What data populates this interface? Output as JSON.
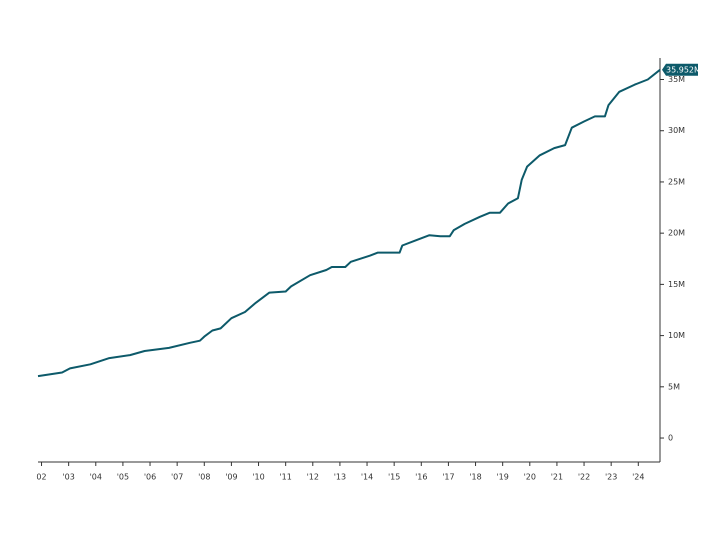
{
  "chart_data": {
    "type": "line",
    "x": [
      2002.37,
      2003.26,
      2003.55,
      2004.3,
      2005.0,
      2005.76,
      2006.3,
      2007.2,
      2007.97,
      2008.34,
      2008.5,
      2008.8,
      2009.1,
      2009.5,
      2010.0,
      2010.4,
      2010.9,
      2011.5,
      2011.7,
      2012.4,
      2013.0,
      2013.2,
      2013.7,
      2013.9,
      2014.6,
      2014.9,
      2015.7,
      2015.8,
      2016.3,
      2016.8,
      2017.2,
      2017.55,
      2017.7,
      2018.1,
      2018.66,
      2019.03,
      2019.4,
      2019.7,
      2020.06,
      2020.2,
      2020.4,
      2020.87,
      2021.4,
      2021.8,
      2022.05,
      2022.5,
      2022.9,
      2023.27,
      2023.4,
      2023.8,
      2024.37,
      2024.85,
      2025.3
    ],
    "series": [
      {
        "color": "#0d5a6a",
        "values": [
          6.05,
          6.4,
          6.8,
          7.2,
          7.8,
          8.1,
          8.5,
          8.8,
          9.3,
          9.5,
          9.9,
          10.5,
          10.7,
          11.7,
          12.3,
          13.2,
          14.2,
          14.3,
          14.8,
          15.9,
          16.4,
          16.7,
          16.7,
          17.2,
          17.8,
          18.1,
          18.1,
          18.8,
          19.3,
          19.8,
          19.7,
          19.7,
          20.3,
          20.9,
          21.6,
          22.0,
          22.0,
          22.9,
          23.4,
          25.2,
          26.5,
          27.6,
          28.3,
          28.6,
          30.3,
          30.9,
          31.4,
          31.4,
          32.5,
          33.8,
          34.5,
          35.0,
          35.952
        ]
      }
    ],
    "last_value": 35.952,
    "last_value_label": "35.952M",
    "xlim": [
      2002.37,
      2025.3
    ],
    "xticks": [
      {
        "value": 2002.5,
        "label": "02"
      },
      {
        "value": 2003.5,
        "label": "'03"
      },
      {
        "value": 2004.5,
        "label": "'04"
      },
      {
        "value": 2005.5,
        "label": "'05"
      },
      {
        "value": 2006.5,
        "label": "'06"
      },
      {
        "value": 2007.5,
        "label": "'07"
      },
      {
        "value": 2008.5,
        "label": "'08"
      },
      {
        "value": 2009.5,
        "label": "'09"
      },
      {
        "value": 2010.5,
        "label": "'10"
      },
      {
        "value": 2011.5,
        "label": "'11"
      },
      {
        "value": 2012.5,
        "label": "'12"
      },
      {
        "value": 2013.5,
        "label": "'13"
      },
      {
        "value": 2014.5,
        "label": "'14"
      },
      {
        "value": 2015.5,
        "label": "'15"
      },
      {
        "value": 2016.5,
        "label": "'16"
      },
      {
        "value": 2017.5,
        "label": "'17"
      },
      {
        "value": 2018.5,
        "label": "'18"
      },
      {
        "value": 2019.5,
        "label": "'19"
      },
      {
        "value": 2020.5,
        "label": "'20"
      },
      {
        "value": 2021.5,
        "label": "'21"
      },
      {
        "value": 2022.5,
        "label": "'22"
      },
      {
        "value": 2023.5,
        "label": "'23"
      },
      {
        "value": 2024.5,
        "label": "'24"
      }
    ],
    "ylim": [
      -2.34,
      37.1
    ],
    "yticks": [
      0,
      {
        "value": 5,
        "label": "5M"
      },
      {
        "value": 10,
        "label": "10M"
      },
      {
        "value": 15,
        "label": "15M"
      },
      {
        "value": 20,
        "label": "20M"
      },
      {
        "value": 25,
        "label": "25M"
      },
      {
        "value": 30,
        "label": "30M"
      },
      {
        "value": 35,
        "label": "35M"
      }
    ]
  }
}
